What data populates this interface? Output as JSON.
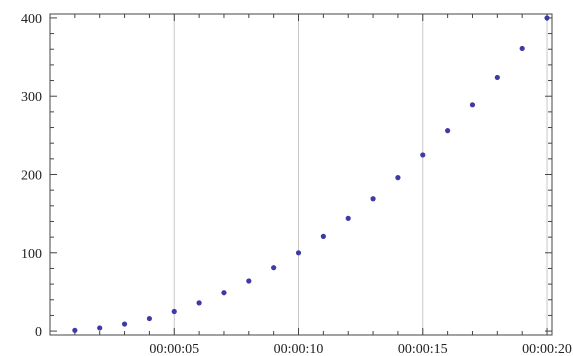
{
  "chart_data": {
    "type": "scatter",
    "title": "",
    "xlabel": "",
    "ylabel": "",
    "x_tick_labels": [
      "00:00:05",
      "00:00:10",
      "00:00:15",
      "00:00:20"
    ],
    "y_tick_labels": [
      "0",
      "100",
      "200",
      "300",
      "400"
    ],
    "x_unit": "seconds",
    "xlim": [
      0,
      20.2
    ],
    "ylim": [
      -5,
      405
    ],
    "grid": "vertical lines at major x ticks",
    "point_color": "#3f3aa6",
    "grid_color": "#c8c8c8",
    "series": [
      {
        "x": [
          1,
          2,
          3,
          4,
          5,
          6,
          7,
          8,
          9,
          10,
          11,
          12,
          13,
          14,
          15,
          16,
          17,
          18,
          19,
          20
        ],
        "y": [
          1,
          4,
          9,
          16,
          25,
          36,
          49,
          64,
          81,
          100,
          121,
          144,
          169,
          196,
          225,
          256,
          289,
          324,
          361,
          400
        ]
      }
    ]
  }
}
